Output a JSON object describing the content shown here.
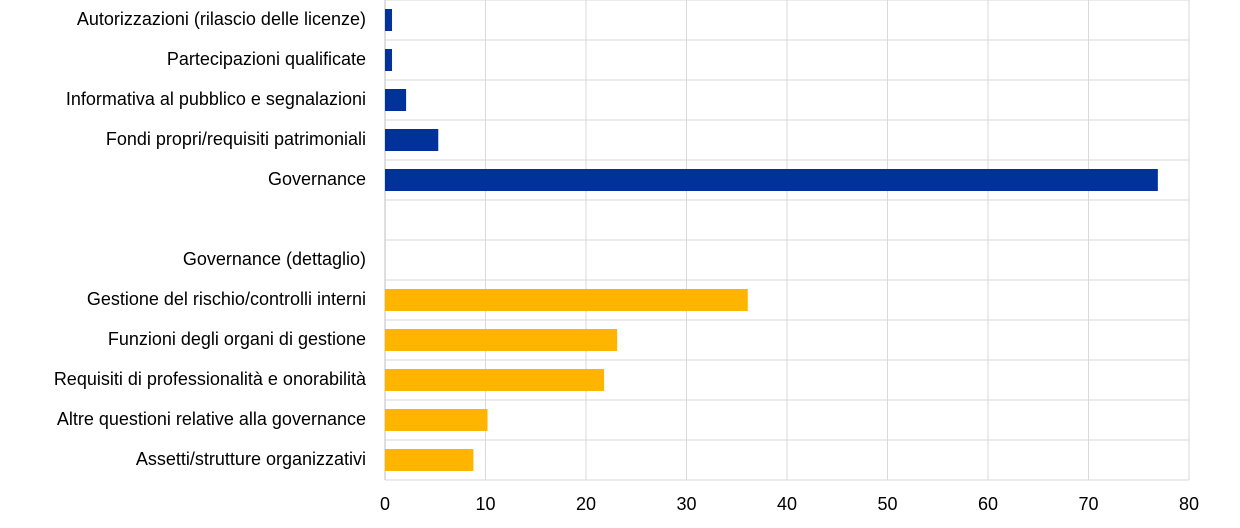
{
  "chart_data": {
    "type": "hbar",
    "categories": [
      "Autorizzazioni (rilascio delle licenze)",
      "Partecipazioni qualificate",
      "Informativa al pubblico e segnalazioni",
      "Fondi propri/requisiti patrimoniali",
      "Governance",
      null,
      "Governance (dettaglio)",
      "Gestione del rischio/controlli interni",
      "Funzioni degli organi di gestione",
      "Requisiti di professionalità e onorabilità",
      "Altre questioni relative alla governance",
      "Assetti/strutture organizzativi"
    ],
    "series": [
      {
        "color": "#003299",
        "values": [
          0.7,
          0.7,
          2.1,
          5.3,
          76.9,
          null,
          null,
          null,
          null,
          null,
          null,
          null
        ]
      },
      {
        "color": "#ffb400",
        "values": [
          null,
          null,
          null,
          null,
          null,
          null,
          null,
          36.1,
          23.1,
          21.8,
          10.2,
          8.8
        ]
      }
    ],
    "xlim": [
      0,
      80
    ],
    "xticks": [
      0,
      10,
      20,
      30,
      40,
      50,
      60,
      70,
      80
    ],
    "grid": true
  }
}
